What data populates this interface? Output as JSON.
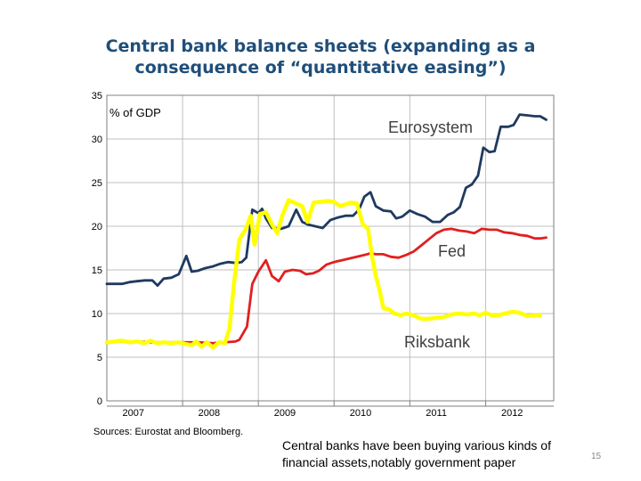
{
  "slide": {
    "title_line1": "Central bank balance sheets (expanding as a",
    "title_line2": "consequence of “quantitative easing”)",
    "caption_line1": "Central banks have been buying various kinds of",
    "caption_line2": "financial assets,notably government paper",
    "page_number": "15"
  },
  "chart_data": {
    "type": "line",
    "unit_label": "% of GDP",
    "source": "Sources: Eurostat and Bloomberg.",
    "ylim": [
      0,
      35
    ],
    "yticks": [
      0,
      5,
      10,
      15,
      20,
      25,
      30,
      35
    ],
    "xlim": [
      2007.0,
      2012.9
    ],
    "xtick_labels": [
      "2007",
      "2008",
      "2009",
      "2010",
      "2011",
      "2012"
    ],
    "grid": true,
    "series": [
      {
        "name": "Eurosystem",
        "color": "#1f3a5f",
        "points": [
          [
            2007.0,
            13.4
          ],
          [
            2007.1,
            13.4
          ],
          [
            2007.2,
            13.4
          ],
          [
            2007.3,
            13.6
          ],
          [
            2007.4,
            13.7
          ],
          [
            2007.5,
            13.8
          ],
          [
            2007.6,
            13.8
          ],
          [
            2007.67,
            13.2
          ],
          [
            2007.75,
            14.0
          ],
          [
            2007.85,
            14.1
          ],
          [
            2007.95,
            14.5
          ],
          [
            2008.05,
            16.6
          ],
          [
            2008.12,
            14.8
          ],
          [
            2008.2,
            14.9
          ],
          [
            2008.3,
            15.2
          ],
          [
            2008.4,
            15.4
          ],
          [
            2008.5,
            15.7
          ],
          [
            2008.6,
            15.9
          ],
          [
            2008.7,
            15.8
          ],
          [
            2008.78,
            15.9
          ],
          [
            2008.84,
            16.4
          ],
          [
            2008.92,
            21.9
          ],
          [
            2009.0,
            21.5
          ],
          [
            2009.05,
            22.0
          ],
          [
            2009.1,
            20.9
          ],
          [
            2009.18,
            19.8
          ],
          [
            2009.3,
            19.7
          ],
          [
            2009.4,
            20.0
          ],
          [
            2009.5,
            21.9
          ],
          [
            2009.58,
            20.5
          ],
          [
            2009.65,
            20.2
          ],
          [
            2009.75,
            20.0
          ],
          [
            2009.85,
            19.8
          ],
          [
            2009.95,
            20.7
          ],
          [
            2010.05,
            21.0
          ],
          [
            2010.15,
            21.2
          ],
          [
            2010.25,
            21.2
          ],
          [
            2010.33,
            21.9
          ],
          [
            2010.4,
            23.4
          ],
          [
            2010.48,
            23.9
          ],
          [
            2010.55,
            22.3
          ],
          [
            2010.65,
            21.8
          ],
          [
            2010.75,
            21.7
          ],
          [
            2010.82,
            20.9
          ],
          [
            2010.9,
            21.1
          ],
          [
            2011.0,
            21.8
          ],
          [
            2011.1,
            21.4
          ],
          [
            2011.2,
            21.1
          ],
          [
            2011.3,
            20.5
          ],
          [
            2011.4,
            20.5
          ],
          [
            2011.5,
            21.3
          ],
          [
            2011.58,
            21.6
          ],
          [
            2011.66,
            22.2
          ],
          [
            2011.74,
            24.4
          ],
          [
            2011.82,
            24.8
          ],
          [
            2011.9,
            25.8
          ],
          [
            2011.97,
            29.0
          ],
          [
            2012.05,
            28.5
          ],
          [
            2012.12,
            28.6
          ],
          [
            2012.2,
            31.4
          ],
          [
            2012.3,
            31.4
          ],
          [
            2012.37,
            31.6
          ],
          [
            2012.45,
            32.8
          ],
          [
            2012.55,
            32.7
          ],
          [
            2012.65,
            32.6
          ],
          [
            2012.72,
            32.6
          ],
          [
            2012.8,
            32.2
          ]
        ]
      },
      {
        "name": "Fed",
        "color": "#e02020",
        "points": [
          [
            2007.0,
            6.7
          ],
          [
            2007.2,
            6.8
          ],
          [
            2007.4,
            6.8
          ],
          [
            2007.6,
            6.7
          ],
          [
            2007.8,
            6.7
          ],
          [
            2008.0,
            6.7
          ],
          [
            2008.2,
            6.7
          ],
          [
            2008.4,
            6.6
          ],
          [
            2008.55,
            6.7
          ],
          [
            2008.7,
            6.8
          ],
          [
            2008.75,
            7.0
          ],
          [
            2008.85,
            8.5
          ],
          [
            2008.92,
            13.4
          ],
          [
            2009.0,
            14.8
          ],
          [
            2009.1,
            16.1
          ],
          [
            2009.18,
            14.3
          ],
          [
            2009.27,
            13.7
          ],
          [
            2009.35,
            14.8
          ],
          [
            2009.45,
            15.0
          ],
          [
            2009.55,
            14.9
          ],
          [
            2009.63,
            14.5
          ],
          [
            2009.72,
            14.6
          ],
          [
            2009.8,
            14.9
          ],
          [
            2009.9,
            15.6
          ],
          [
            2010.0,
            15.9
          ],
          [
            2010.1,
            16.1
          ],
          [
            2010.2,
            16.3
          ],
          [
            2010.3,
            16.5
          ],
          [
            2010.4,
            16.7
          ],
          [
            2010.48,
            16.9
          ],
          [
            2010.55,
            16.8
          ],
          [
            2010.65,
            16.8
          ],
          [
            2010.75,
            16.5
          ],
          [
            2010.85,
            16.4
          ],
          [
            2010.95,
            16.7
          ],
          [
            2011.05,
            17.1
          ],
          [
            2011.15,
            17.8
          ],
          [
            2011.25,
            18.5
          ],
          [
            2011.35,
            19.2
          ],
          [
            2011.45,
            19.6
          ],
          [
            2011.55,
            19.7
          ],
          [
            2011.65,
            19.5
          ],
          [
            2011.75,
            19.4
          ],
          [
            2011.85,
            19.2
          ],
          [
            2011.95,
            19.7
          ],
          [
            2012.05,
            19.6
          ],
          [
            2012.15,
            19.6
          ],
          [
            2012.25,
            19.3
          ],
          [
            2012.35,
            19.2
          ],
          [
            2012.45,
            19.0
          ],
          [
            2012.55,
            18.9
          ],
          [
            2012.65,
            18.6
          ],
          [
            2012.72,
            18.6
          ],
          [
            2012.8,
            18.7
          ]
        ]
      },
      {
        "name": "Riksbank",
        "color": "#ffff00",
        "points": [
          [
            2007.0,
            6.7
          ],
          [
            2007.1,
            6.8
          ],
          [
            2007.2,
            6.9
          ],
          [
            2007.3,
            6.7
          ],
          [
            2007.4,
            6.8
          ],
          [
            2007.5,
            6.6
          ],
          [
            2007.58,
            6.9
          ],
          [
            2007.66,
            6.6
          ],
          [
            2007.75,
            6.7
          ],
          [
            2007.85,
            6.6
          ],
          [
            2007.95,
            6.7
          ],
          [
            2008.05,
            6.5
          ],
          [
            2008.12,
            6.4
          ],
          [
            2008.18,
            6.8
          ],
          [
            2008.25,
            6.2
          ],
          [
            2008.32,
            6.7
          ],
          [
            2008.4,
            6.1
          ],
          [
            2008.48,
            6.7
          ],
          [
            2008.56,
            6.6
          ],
          [
            2008.62,
            8.3
          ],
          [
            2008.68,
            13.5
          ],
          [
            2008.75,
            18.5
          ],
          [
            2008.83,
            19.6
          ],
          [
            2008.9,
            21.2
          ],
          [
            2008.95,
            17.9
          ],
          [
            2009.02,
            21.4
          ],
          [
            2009.1,
            21.6
          ],
          [
            2009.18,
            20.2
          ],
          [
            2009.25,
            19.2
          ],
          [
            2009.32,
            21.3
          ],
          [
            2009.4,
            23.0
          ],
          [
            2009.5,
            22.6
          ],
          [
            2009.58,
            22.3
          ],
          [
            2009.65,
            20.5
          ],
          [
            2009.73,
            22.7
          ],
          [
            2009.82,
            22.8
          ],
          [
            2009.92,
            22.9
          ],
          [
            2010.0,
            22.8
          ],
          [
            2010.08,
            22.3
          ],
          [
            2010.15,
            22.5
          ],
          [
            2010.22,
            22.7
          ],
          [
            2010.3,
            22.6
          ],
          [
            2010.38,
            20.2
          ],
          [
            2010.45,
            19.7
          ],
          [
            2010.5,
            16.6
          ],
          [
            2010.55,
            14.3
          ],
          [
            2010.6,
            12.7
          ],
          [
            2010.65,
            10.6
          ],
          [
            2010.72,
            10.5
          ],
          [
            2010.8,
            10.0
          ],
          [
            2010.88,
            9.8
          ],
          [
            2010.95,
            10.0
          ],
          [
            2011.05,
            9.8
          ],
          [
            2011.15,
            9.4
          ],
          [
            2011.25,
            9.4
          ],
          [
            2011.35,
            9.5
          ],
          [
            2011.45,
            9.6
          ],
          [
            2011.55,
            9.9
          ],
          [
            2011.65,
            10.0
          ],
          [
            2011.75,
            9.9
          ],
          [
            2011.85,
            10.0
          ],
          [
            2011.92,
            9.8
          ],
          [
            2012.0,
            10.1
          ],
          [
            2012.08,
            9.8
          ],
          [
            2012.16,
            9.8
          ],
          [
            2012.26,
            10.0
          ],
          [
            2012.35,
            10.2
          ],
          [
            2012.45,
            10.1
          ],
          [
            2012.55,
            9.7
          ],
          [
            2012.65,
            9.8
          ],
          [
            2012.72,
            9.8
          ]
        ]
      }
    ]
  }
}
